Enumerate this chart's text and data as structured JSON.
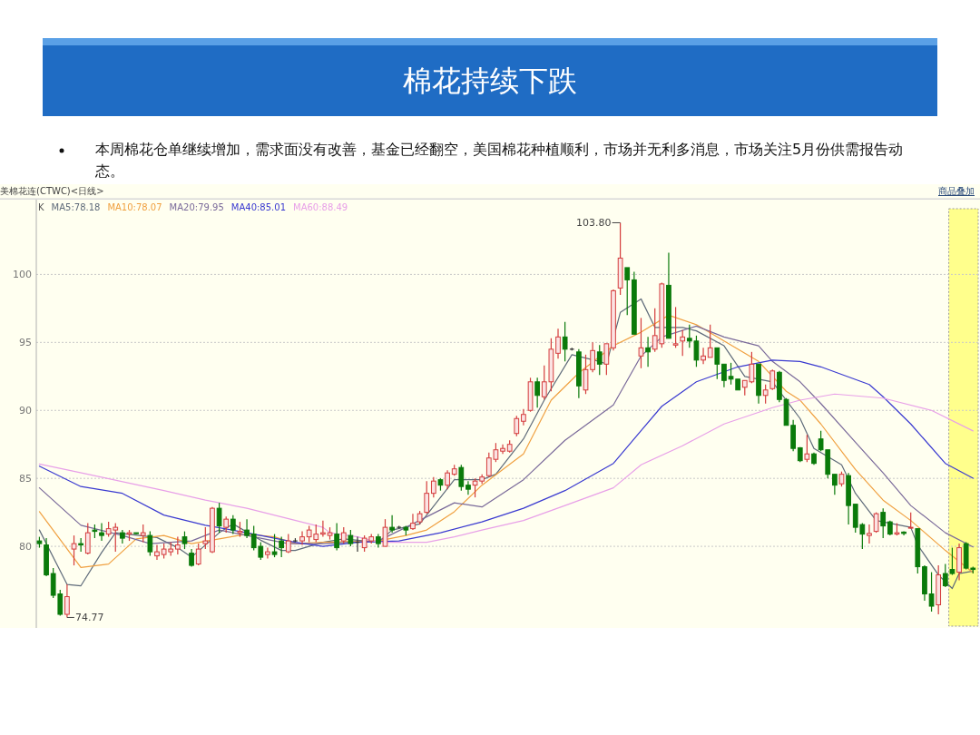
{
  "chart_data": {
    "type": "candlestick",
    "title": "棉花持续下跌",
    "subtitle": "本周棉花仓单继续增加，需求面没有改善，基金已经翻空，美国棉花种植顺利，市场并无利多消息，市场关注5月份供需报告动态。",
    "annotations": [
      "103.80",
      "74.77",
      "美棉花连(CTWC)<日线>",
      "商品叠加"
    ],
    "legend_title": "K",
    "grid": "y",
    "tick_labels": "y",
    "categories": [
      null,
      null,
      null,
      null,
      null,
      null,
      null,
      null,
      null,
      null,
      null,
      null,
      null,
      null,
      null,
      null,
      null,
      null,
      null,
      null,
      null,
      null,
      null,
      null,
      null,
      null,
      null,
      null,
      null,
      null,
      null,
      null,
      null,
      null,
      null,
      null,
      null,
      null,
      null,
      null,
      null,
      null,
      null,
      null,
      null,
      null,
      null,
      null,
      null,
      null,
      null,
      null,
      null,
      null,
      null,
      null,
      null,
      null,
      null,
      null,
      null,
      null,
      null,
      null,
      null,
      null,
      null,
      null,
      null,
      null,
      null,
      null,
      null,
      null,
      null,
      null,
      null,
      null,
      null,
      null,
      null,
      null,
      null,
      null,
      null,
      null,
      null,
      null,
      null,
      null,
      null,
      null,
      null,
      null,
      null,
      null,
      null,
      null,
      null,
      null,
      null,
      null,
      null,
      null,
      null,
      null,
      null,
      null,
      null,
      null,
      null,
      null,
      null,
      null,
      null,
      null,
      null,
      null,
      null,
      null,
      null,
      null,
      null,
      null,
      null,
      null,
      null,
      null,
      null,
      null,
      null,
      null,
      null,
      null,
      null,
      null
    ],
    "ylim": [
      74,
      105.5
    ],
    "yticks": [
      80,
      85,
      90,
      95,
      100
    ],
    "series": [
      {
        "ohlc": [
          [
            80.4,
            80.7,
            79.9,
            80.2
          ],
          [
            80.1,
            80.6,
            77.8,
            77.9
          ],
          [
            78.0,
            78.4,
            76.2,
            76.4
          ],
          [
            76.5,
            76.8,
            74.9,
            75.0
          ],
          [
            75.0,
            77.2,
            74.77,
            76.3
          ],
          [
            79.8,
            80.8,
            78.6,
            80.2
          ],
          [
            80.2,
            80.6,
            79.6,
            80.1
          ],
          [
            79.5,
            81.7,
            79.4,
            81.0
          ],
          [
            81.2,
            81.6,
            80.6,
            81.1
          ],
          [
            81.0,
            81.7,
            80.4,
            80.8
          ],
          [
            80.9,
            81.8,
            80.7,
            81.3
          ],
          [
            81.2,
            81.7,
            79.6,
            81.4
          ],
          [
            81.0,
            81.2,
            80.2,
            80.6
          ],
          [
            80.9,
            81.2,
            80.4,
            81.0
          ],
          [
            81.0,
            81.0,
            80.9,
            80.95
          ],
          [
            80.8,
            81.6,
            80.3,
            81.0
          ],
          [
            80.8,
            81.1,
            79.3,
            79.6
          ],
          [
            79.3,
            80.1,
            79.0,
            79.6
          ],
          [
            79.4,
            80.2,
            79.1,
            79.8
          ],
          [
            79.6,
            80.3,
            79.3,
            79.8
          ],
          [
            79.8,
            80.7,
            79.4,
            80.1
          ],
          [
            80.7,
            81.1,
            79.8,
            80.2
          ],
          [
            79.5,
            79.8,
            78.5,
            78.6
          ],
          [
            78.7,
            80.2,
            78.6,
            79.8
          ],
          [
            80.2,
            81.4,
            79.8,
            80.4
          ],
          [
            79.6,
            82.9,
            79.5,
            82.8
          ],
          [
            82.8,
            83.2,
            81.0,
            81.5
          ],
          [
            81.4,
            82.2,
            81.0,
            82.0
          ],
          [
            82.0,
            82.3,
            80.9,
            81.2
          ],
          [
            81.0,
            81.8,
            80.7,
            81.1
          ],
          [
            81.2,
            82.0,
            80.6,
            80.8
          ],
          [
            80.9,
            81.5,
            79.7,
            79.9
          ],
          [
            80.0,
            80.3,
            79.0,
            79.2
          ],
          [
            79.4,
            79.9,
            79.1,
            79.6
          ],
          [
            79.6,
            80.9,
            79.2,
            79.4
          ],
          [
            80.4,
            80.7,
            79.2,
            79.9
          ],
          [
            79.6,
            80.9,
            79.5,
            80.4
          ],
          [
            80.4,
            80.6,
            80.3,
            80.4
          ],
          [
            80.4,
            81.1,
            80.1,
            80.7
          ],
          [
            80.7,
            81.5,
            80.3,
            81.2
          ],
          [
            80.5,
            81.6,
            80.3,
            80.9
          ],
          [
            80.9,
            81.9,
            80.7,
            81.0
          ],
          [
            80.8,
            81.4,
            80.5,
            81.0
          ],
          [
            80.9,
            81.7,
            79.7,
            79.9
          ],
          [
            80.4,
            81.4,
            80.2,
            81.0
          ],
          [
            80.8,
            81.2,
            80.0,
            80.2
          ],
          [
            80.3,
            80.7,
            79.6,
            80.3
          ],
          [
            79.9,
            80.8,
            79.6,
            80.6
          ],
          [
            80.4,
            80.9,
            80.2,
            80.7
          ],
          [
            80.7,
            80.9,
            79.9,
            80.2
          ],
          [
            80.0,
            82.0,
            80.0,
            81.4
          ],
          [
            81.4,
            82.3,
            81.0,
            81.2
          ],
          [
            81.4,
            81.5,
            81.3,
            81.4
          ],
          [
            81.4,
            81.5,
            80.8,
            81.2
          ],
          [
            81.3,
            82.4,
            81.2,
            81.7
          ],
          [
            81.8,
            82.6,
            81.6,
            82.4
          ],
          [
            82.5,
            84.8,
            82.4,
            83.9
          ],
          [
            83.9,
            85.1,
            83.6,
            84.8
          ],
          [
            84.9,
            85.0,
            84.1,
            84.5
          ],
          [
            84.5,
            85.6,
            84.2,
            85.4
          ],
          [
            85.3,
            86.0,
            85.2,
            85.7
          ],
          [
            85.8,
            86.0,
            84.1,
            84.4
          ],
          [
            84.5,
            84.8,
            83.8,
            84.2
          ],
          [
            84.5,
            85.0,
            83.6,
            84.8
          ],
          [
            84.8,
            85.3,
            84.6,
            85.1
          ],
          [
            85.2,
            86.9,
            85.1,
            86.5
          ],
          [
            86.4,
            87.6,
            86.2,
            87.1
          ],
          [
            87.0,
            87.5,
            86.8,
            87.2
          ],
          [
            87.0,
            87.8,
            86.9,
            87.5
          ],
          [
            88.3,
            89.6,
            88.1,
            89.4
          ],
          [
            89.2,
            90.1,
            88.9,
            89.7
          ],
          [
            90.0,
            92.4,
            89.9,
            92.1
          ],
          [
            92.1,
            92.4,
            90.2,
            91.1
          ],
          [
            91.0,
            93.3,
            90.8,
            92.1
          ],
          [
            92.1,
            95.3,
            91.4,
            94.5
          ],
          [
            94.2,
            96.0,
            93.8,
            95.4
          ],
          [
            95.4,
            96.5,
            93.6,
            94.5
          ],
          [
            94.5,
            94.6,
            94.4,
            94.5
          ],
          [
            94.3,
            94.5,
            90.9,
            91.8
          ],
          [
            91.5,
            94.1,
            91.2,
            93.0
          ],
          [
            93.0,
            95.0,
            92.8,
            94.4
          ],
          [
            94.3,
            94.8,
            92.6,
            93.4
          ],
          [
            93.4,
            94.9,
            92.6,
            94.9
          ],
          [
            94.6,
            98.9,
            94.4,
            98.8
          ],
          [
            99.0,
            103.8,
            98.5,
            101.2
          ],
          [
            100.5,
            100.5,
            97.0,
            99.6
          ],
          [
            99.6,
            100.2,
            95.6,
            95.6
          ],
          [
            94.0,
            96.8,
            93.1,
            94.6
          ],
          [
            94.6,
            95.4,
            93.2,
            94.3
          ],
          [
            94.5,
            97.5,
            94.3,
            95.5
          ],
          [
            94.9,
            99.4,
            94.6,
            99.3
          ],
          [
            99.2,
            101.6,
            95.3,
            95.3
          ],
          [
            94.8,
            97.6,
            94.6,
            94.9
          ],
          [
            95.1,
            95.9,
            94.0,
            95.4
          ],
          [
            95.3,
            96.3,
            94.6,
            95.1
          ],
          [
            95.1,
            95.5,
            93.2,
            93.7
          ],
          [
            93.7,
            94.6,
            93.4,
            94.0
          ],
          [
            93.9,
            96.3,
            93.9,
            94.6
          ],
          [
            94.6,
            94.6,
            92.3,
            93.4
          ],
          [
            93.4,
            93.4,
            91.7,
            92.2
          ],
          [
            92.5,
            93.5,
            91.9,
            92.3
          ],
          [
            92.3,
            92.3,
            91.5,
            91.5
          ],
          [
            91.7,
            92.2,
            91.1,
            92.2
          ],
          [
            92.1,
            94.3,
            92.0,
            93.4
          ],
          [
            93.4,
            93.4,
            90.5,
            91.1
          ],
          [
            91.1,
            91.9,
            90.5,
            91.5
          ],
          [
            91.6,
            93.0,
            91.5,
            92.9
          ],
          [
            92.8,
            92.9,
            90.6,
            90.8
          ],
          [
            90.8,
            90.9,
            88.9,
            88.9
          ],
          [
            88.9,
            89.3,
            87.0,
            87.2
          ],
          [
            87.25,
            87.3,
            86.2,
            86.3
          ],
          [
            86.4,
            88.2,
            86.2,
            86.8
          ],
          [
            86.8,
            86.9,
            86.0,
            86.1
          ],
          [
            87.9,
            88.5,
            87.0,
            87.1
          ],
          [
            87.1,
            87.1,
            85.0,
            85.3
          ],
          [
            85.3,
            85.3,
            83.8,
            84.5
          ],
          [
            84.6,
            85.5,
            84.4,
            85.3
          ],
          [
            85.2,
            85.4,
            81.6,
            83.0
          ],
          [
            83.1,
            83.1,
            81.0,
            81.4
          ],
          [
            81.6,
            81.7,
            79.8,
            80.9
          ],
          [
            80.8,
            81.6,
            80.2,
            80.95
          ],
          [
            81.1,
            82.5,
            81.0,
            82.4
          ],
          [
            82.5,
            82.8,
            80.6,
            81.5
          ],
          [
            81.8,
            81.9,
            80.8,
            80.9
          ],
          [
            80.9,
            81.7,
            80.8,
            81.0
          ],
          [
            81.05,
            81.1,
            80.8,
            80.95
          ],
          [
            81.35,
            82.5,
            81.3,
            81.4
          ],
          [
            81.3,
            81.3,
            78.0,
            78.5
          ],
          [
            78.5,
            78.6,
            76.0,
            76.5
          ],
          [
            76.5,
            78.1,
            75.2,
            75.6
          ],
          [
            75.7,
            78.6,
            75.0,
            77.9
          ],
          [
            78.0,
            78.7,
            77.0,
            77.1
          ],
          [
            78.3,
            79.9,
            77.9,
            78.0
          ],
          [
            78.1,
            80.2,
            77.5,
            79.9
          ],
          [
            80.2,
            80.3,
            78.3,
            78.4
          ],
          [
            78.4,
            78.5,
            78.0,
            78.3
          ]
        ]
      },
      {
        "name": "MA5:78.18",
        "type": "line",
        "color": "#5f6b7a",
        "values": [
          81.2,
          null,
          null,
          null,
          77.2,
          null,
          77.1,
          null,
          null,
          79.55,
          null,
          81.0,
          null,
          null,
          null,
          null,
          null,
          80.65,
          null,
          null,
          79.9,
          null,
          79.2,
          null,
          null,
          null,
          81.0,
          null,
          81.65,
          null,
          null,
          null,
          80.45,
          null,
          null,
          79.7,
          null,
          79.7,
          null,
          null,
          null,
          80.3,
          null,
          null,
          80.55,
          null,
          null,
          null,
          null,
          80.3,
          null,
          81.2,
          null,
          null,
          null,
          81.65,
          null,
          null,
          null,
          null,
          84.9,
          null,
          null,
          null,
          84.9,
          null,
          85.3,
          null,
          null,
          null,
          87.9,
          null,
          null,
          90.75,
          null,
          null,
          null,
          94.1,
          null,
          null,
          null,
          93.6,
          93.4,
          null,
          97.2,
          null,
          null,
          98.2,
          null,
          96.1,
          null,
          null,
          null,
          96.1,
          null,
          95.85,
          null,
          null,
          null,
          94.75,
          null,
          null,
          92.5,
          null,
          null,
          null,
          92.1,
          null,
          90.75,
          null,
          89.4,
          null,
          87.2,
          null,
          null,
          null,
          86.0,
          null,
          83.9,
          null,
          null,
          81.9,
          null,
          null,
          null,
          null,
          81.4,
          80.1,
          null,
          null,
          77.9,
          null,
          76.9,
          78.0,
          null,
          78.18
        ]
      },
      {
        "name": "MA10:78.07",
        "type": "line",
        "color": "#f0a040",
        "values": [
          82.55,
          null,
          null,
          null,
          null,
          null,
          78.45,
          null,
          null,
          null,
          78.7,
          null,
          null,
          null,
          80.55,
          null,
          null,
          null,
          80.8,
          null,
          null,
          null,
          80.2,
          null,
          null,
          null,
          80.55,
          null,
          null,
          null,
          80.9,
          null,
          null,
          null,
          80.7,
          null,
          null,
          80.2,
          null,
          null,
          null,
          80.3,
          null,
          null,
          null,
          null,
          null,
          null,
          null,
          80.4,
          null,
          null,
          null,
          80.8,
          null,
          null,
          81.2,
          null,
          null,
          null,
          82.55,
          null,
          null,
          null,
          84.5,
          null,
          null,
          null,
          null,
          null,
          86.8,
          null,
          null,
          null,
          90.75,
          null,
          null,
          null,
          92.75,
          null,
          null,
          null,
          null,
          94.75,
          null,
          null,
          null,
          95.75,
          null,
          null,
          null,
          97.0,
          null,
          null,
          null,
          96.3,
          null,
          null,
          null,
          95.1,
          null,
          null,
          null,
          null,
          93.6,
          null,
          null,
          null,
          91.4,
          null,
          90.75,
          null,
          null,
          89.0,
          null,
          null,
          null,
          null,
          85.65,
          null,
          null,
          null,
          83.4,
          null,
          null,
          null,
          81.9,
          null,
          null,
          null,
          null,
          79.7,
          null,
          null,
          null,
          78.07
        ]
      },
      {
        "name": "MA20:79.95",
        "type": "line",
        "color": "#7a6a9a",
        "values": [
          84.3,
          null,
          null,
          null,
          null,
          null,
          81.55,
          null,
          null,
          null,
          null,
          null,
          80.8,
          null,
          null,
          null,
          80.2,
          null,
          null,
          null,
          null,
          null,
          80.4,
          null,
          null,
          null,
          81.2,
          null,
          null,
          null,
          80.8,
          null,
          null,
          null,
          null,
          null,
          80.2,
          null,
          null,
          null,
          null,
          80.2,
          null,
          null,
          null,
          null,
          null,
          null,
          null,
          80.4,
          null,
          null,
          null,
          81.4,
          null,
          null,
          null,
          null,
          null,
          null,
          83.2,
          null,
          null,
          null,
          82.9,
          null,
          null,
          null,
          null,
          null,
          84.9,
          null,
          null,
          null,
          null,
          null,
          87.8,
          null,
          null,
          null,
          null,
          null,
          null,
          90.4,
          null,
          null,
          null,
          94.0,
          null,
          null,
          95.4,
          null,
          null,
          null,
          null,
          96.2,
          null,
          null,
          null,
          95.4,
          null,
          null,
          null,
          null,
          94.75,
          null,
          93.6,
          null,
          null,
          null,
          92.1,
          null,
          null,
          90.5,
          null,
          null,
          null,
          null,
          87.65,
          null,
          null,
          null,
          85.4,
          null,
          null,
          null,
          83.0,
          null,
          null,
          null,
          null,
          81.0,
          null,
          null,
          null,
          79.95
        ]
      },
      {
        "name": "MA40:85.01",
        "type": "line",
        "color": "#3a3ad0",
        "values": [
          85.9,
          null,
          null,
          null,
          null,
          null,
          84.4,
          null,
          null,
          null,
          null,
          null,
          83.9,
          null,
          null,
          null,
          null,
          null,
          82.3,
          null,
          null,
          null,
          null,
          null,
          81.55,
          null,
          null,
          null,
          null,
          null,
          81.0,
          null,
          null,
          null,
          null,
          null,
          null,
          80.3,
          null,
          null,
          null,
          80.0,
          null,
          null,
          null,
          null,
          80.3,
          null,
          null,
          null,
          null,
          null,
          80.4,
          null,
          null,
          null,
          null,
          null,
          81.0,
          null,
          null,
          null,
          null,
          null,
          81.8,
          null,
          null,
          null,
          null,
          null,
          82.8,
          null,
          null,
          null,
          null,
          null,
          84.1,
          null,
          null,
          null,
          null,
          null,
          null,
          86.1,
          null,
          null,
          null,
          88.5,
          null,
          null,
          90.3,
          null,
          null,
          null,
          null,
          92.1,
          null,
          null,
          null,
          null,
          null,
          93.2,
          null,
          null,
          null,
          null,
          93.7,
          null,
          null,
          null,
          93.6,
          null,
          null,
          93.2,
          null,
          null,
          null,
          null,
          null,
          null,
          91.9,
          null,
          91.0,
          null,
          null,
          null,
          89.0,
          null,
          null,
          null,
          null,
          86.1,
          null,
          null,
          null,
          85.01
        ]
      },
      {
        "name": "MA60:88.49",
        "type": "line",
        "color": "#e8a0e8",
        "values": [
          86.05,
          null,
          null,
          null,
          null,
          null,
          null,
          85.3,
          null,
          null,
          null,
          null,
          null,
          null,
          null,
          null,
          null,
          null,
          84.1,
          null,
          null,
          null,
          null,
          null,
          83.4,
          null,
          null,
          null,
          null,
          null,
          82.8,
          null,
          null,
          null,
          null,
          null,
          null,
          null,
          null,
          null,
          null,
          81.4,
          81.0,
          null,
          null,
          null,
          80.7,
          null,
          null,
          80.3,
          null,
          null,
          null,
          null,
          null,
          null,
          80.3,
          null,
          null,
          null,
          80.7,
          null,
          null,
          null,
          81.2,
          null,
          null,
          null,
          null,
          null,
          81.9,
          null,
          null,
          null,
          null,
          null,
          83.0,
          null,
          null,
          null,
          null,
          null,
          null,
          84.3,
          null,
          null,
          null,
          86.0,
          null,
          null,
          null,
          null,
          null,
          87.4,
          null,
          null,
          null,
          null,
          null,
          89.0,
          null,
          null,
          null,
          null,
          null,
          null,
          90.2,
          null,
          null,
          null,
          90.75,
          null,
          null,
          null,
          null,
          91.2,
          null,
          null,
          null,
          null,
          null,
          null,
          90.9,
          null,
          null,
          null,
          null,
          null,
          null,
          90.0,
          null,
          null,
          null,
          null,
          null,
          88.49
        ]
      }
    ]
  }
}
